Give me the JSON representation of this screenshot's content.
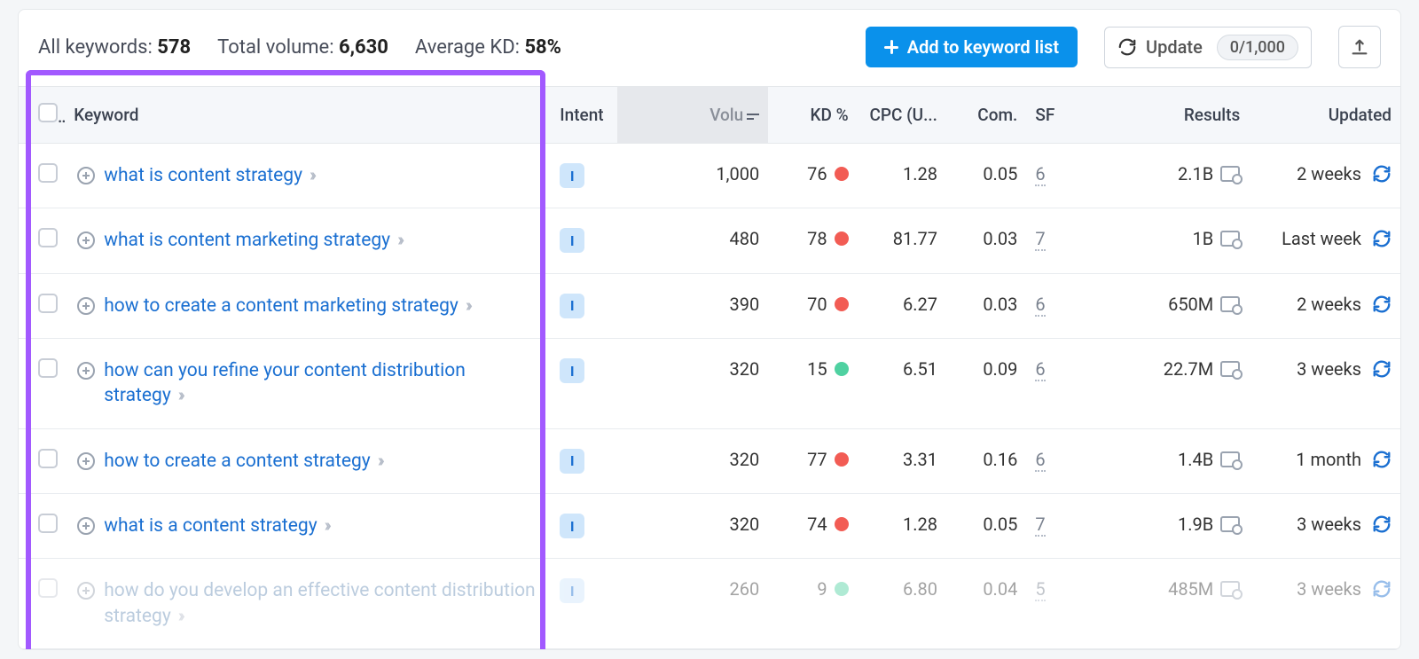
{
  "summary": {
    "all_keywords_label": "All keywords:",
    "all_keywords_value": "578",
    "total_volume_label": "Total volume:",
    "total_volume_value": "6,630",
    "avg_kd_label": "Average KD:",
    "avg_kd_value": "58%"
  },
  "actions": {
    "add_to_list": "Add to keyword list",
    "update": "Update",
    "update_count": "0/1,000"
  },
  "columns": {
    "keyword": "Keyword",
    "intent": "Intent",
    "volume": "Volu",
    "kd": "KD %",
    "cpc": "CPC (U...",
    "com": "Com.",
    "sf": "SF",
    "results": "Results",
    "updated": "Updated"
  },
  "rows": [
    {
      "kw": "what is content strategy",
      "intent": "I",
      "vol": "1,000",
      "kd": "76",
      "kd_color": "red",
      "cpc": "1.28",
      "com": "0.05",
      "sf": "6",
      "res": "2.1B",
      "upd": "2 weeks",
      "faded": false
    },
    {
      "kw": "what is content marketing strategy",
      "intent": "I",
      "vol": "480",
      "kd": "78",
      "kd_color": "red",
      "cpc": "81.77",
      "com": "0.03",
      "sf": "7",
      "res": "1B",
      "upd": "Last week",
      "faded": false
    },
    {
      "kw": "how to create a content marketing strategy",
      "intent": "I",
      "vol": "390",
      "kd": "70",
      "kd_color": "red",
      "cpc": "6.27",
      "com": "0.03",
      "sf": "6",
      "res": "650M",
      "upd": "2 weeks",
      "faded": false
    },
    {
      "kw": "how can you refine your content distribution strategy",
      "intent": "I",
      "vol": "320",
      "kd": "15",
      "kd_color": "green",
      "cpc": "6.51",
      "com": "0.09",
      "sf": "6",
      "res": "22.7M",
      "upd": "3 weeks",
      "faded": false
    },
    {
      "kw": "how to create a content strategy",
      "intent": "I",
      "vol": "320",
      "kd": "77",
      "kd_color": "red",
      "cpc": "3.31",
      "com": "0.16",
      "sf": "6",
      "res": "1.4B",
      "upd": "1 month",
      "faded": false
    },
    {
      "kw": "what is a content strategy",
      "intent": "I",
      "vol": "320",
      "kd": "74",
      "kd_color": "red",
      "cpc": "1.28",
      "com": "0.05",
      "sf": "7",
      "res": "1.9B",
      "upd": "3 weeks",
      "faded": false
    },
    {
      "kw": "how do you develop an effective content distribution strategy",
      "intent": "I",
      "vol": "260",
      "kd": "9",
      "kd_color": "green",
      "cpc": "6.80",
      "com": "0.04",
      "sf": "5",
      "res": "485M",
      "upd": "3 weeks",
      "faded": true
    }
  ],
  "colors": {
    "highlight_border": "#a259ff",
    "primary": "#0a91eb",
    "link": "#1a6fd1",
    "kd_red": "#f25c54",
    "kd_green": "#4fd1a1"
  }
}
